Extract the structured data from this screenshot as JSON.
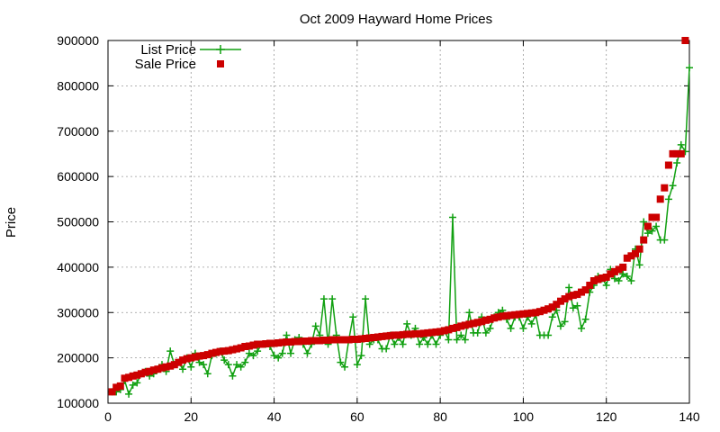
{
  "chart_data": {
    "type": "line",
    "title": "Oct 2009 Hayward Home Prices",
    "xlabel": "",
    "ylabel": "Price",
    "xlim": [
      0,
      140
    ],
    "ylim": [
      100000,
      900000
    ],
    "xticks": [
      "0",
      "20",
      "40",
      "60",
      "80",
      "100",
      "120",
      "140"
    ],
    "yticks": [
      "100000",
      "200000",
      "300000",
      "400000",
      "500000",
      "600000",
      "700000",
      "800000",
      "900000"
    ],
    "grid": true,
    "legend_position": "top-left",
    "series": [
      {
        "name": "List Price",
        "type": "line",
        "marker": "plus",
        "color": "#11a011",
        "x": [
          1,
          2,
          3,
          4,
          5,
          6,
          7,
          8,
          9,
          10,
          11,
          12,
          13,
          14,
          15,
          16,
          17,
          18,
          19,
          20,
          21,
          22,
          23,
          24,
          25,
          26,
          27,
          28,
          29,
          30,
          31,
          32,
          33,
          34,
          35,
          36,
          37,
          38,
          39,
          40,
          41,
          42,
          43,
          44,
          45,
          46,
          47,
          48,
          49,
          50,
          51,
          52,
          53,
          54,
          55,
          56,
          57,
          58,
          59,
          60,
          61,
          62,
          63,
          64,
          65,
          66,
          67,
          68,
          69,
          70,
          71,
          72,
          73,
          74,
          75,
          76,
          77,
          78,
          79,
          80,
          81,
          82,
          83,
          84,
          85,
          86,
          87,
          88,
          89,
          90,
          91,
          92,
          93,
          94,
          95,
          96,
          97,
          98,
          99,
          100,
          101,
          102,
          103,
          104,
          105,
          106,
          107,
          108,
          109,
          110,
          111,
          112,
          113,
          114,
          115,
          116,
          117,
          118,
          119,
          120,
          121,
          122,
          123,
          124,
          125,
          126,
          127,
          128,
          129,
          130,
          131,
          132,
          133,
          134,
          135,
          136,
          137,
          138,
          139,
          140
        ],
        "values": [
          125000,
          125000,
          130000,
          150000,
          120000,
          140000,
          145000,
          165000,
          170000,
          160000,
          165000,
          175000,
          185000,
          170000,
          215000,
          185000,
          190000,
          175000,
          200000,
          180000,
          210000,
          190000,
          185000,
          165000,
          205000,
          210000,
          215000,
          195000,
          185000,
          160000,
          185000,
          180000,
          190000,
          210000,
          205000,
          215000,
          230000,
          230000,
          225000,
          205000,
          200000,
          210000,
          250000,
          210000,
          240000,
          245000,
          230000,
          210000,
          230000,
          270000,
          250000,
          330000,
          230000,
          330000,
          250000,
          190000,
          180000,
          240000,
          290000,
          185000,
          205000,
          330000,
          230000,
          240000,
          240000,
          220000,
          220000,
          250000,
          230000,
          245000,
          230000,
          275000,
          250000,
          265000,
          230000,
          245000,
          230000,
          250000,
          230000,
          250000,
          260000,
          240000,
          510000,
          240000,
          250000,
          240000,
          300000,
          255000,
          255000,
          290000,
          255000,
          265000,
          290000,
          300000,
          305000,
          285000,
          265000,
          290000,
          290000,
          265000,
          290000,
          275000,
          295000,
          250000,
          250000,
          250000,
          290000,
          305000,
          270000,
          280000,
          355000,
          310000,
          315000,
          265000,
          285000,
          345000,
          360000,
          380000,
          375000,
          360000,
          395000,
          375000,
          370000,
          385000,
          380000,
          370000,
          440000,
          405000,
          500000,
          475000,
          480000,
          490000,
          460000,
          460000,
          550000,
          580000,
          630000,
          670000,
          655000,
          840000
        ]
      },
      {
        "name": "Sale Price",
        "type": "scatter",
        "marker": "square",
        "color": "#cc0000",
        "x": [
          1,
          2,
          3,
          4,
          5,
          6,
          7,
          8,
          9,
          10,
          11,
          12,
          13,
          14,
          15,
          16,
          17,
          18,
          19,
          20,
          21,
          22,
          23,
          24,
          25,
          26,
          27,
          28,
          29,
          30,
          31,
          32,
          33,
          34,
          35,
          36,
          37,
          38,
          39,
          40,
          41,
          42,
          43,
          44,
          45,
          46,
          47,
          48,
          49,
          50,
          51,
          52,
          53,
          54,
          55,
          56,
          57,
          58,
          59,
          60,
          61,
          62,
          63,
          64,
          65,
          66,
          67,
          68,
          69,
          70,
          71,
          72,
          73,
          74,
          75,
          76,
          77,
          78,
          79,
          80,
          81,
          82,
          83,
          84,
          85,
          86,
          87,
          88,
          89,
          90,
          91,
          92,
          93,
          94,
          95,
          96,
          97,
          98,
          99,
          100,
          101,
          102,
          103,
          104,
          105,
          106,
          107,
          108,
          109,
          110,
          111,
          112,
          113,
          114,
          115,
          116,
          117,
          118,
          119,
          120,
          121,
          122,
          123,
          124,
          125,
          126,
          127,
          128,
          129,
          130,
          131,
          132,
          133,
          134,
          135,
          136,
          137,
          138,
          139,
          140
        ],
        "values": [
          125000,
          135000,
          138000,
          155000,
          157000,
          160000,
          162000,
          165000,
          168000,
          170000,
          173000,
          175000,
          178000,
          180000,
          182000,
          185000,
          190000,
          195000,
          198000,
          200000,
          202000,
          204000,
          205000,
          207000,
          210000,
          212000,
          214000,
          215000,
          216000,
          218000,
          220000,
          222000,
          225000,
          226000,
          228000,
          230000,
          230000,
          231000,
          232000,
          232000,
          233000,
          234000,
          235000,
          235000,
          236000,
          236000,
          237000,
          237000,
          238000,
          238000,
          238000,
          239000,
          239000,
          240000,
          240000,
          240000,
          240000,
          240000,
          241000,
          241000,
          242000,
          243000,
          244000,
          245000,
          246000,
          247000,
          248000,
          249000,
          250000,
          250000,
          251000,
          252000,
          252000,
          253000,
          253000,
          254000,
          255000,
          256000,
          257000,
          258000,
          260000,
          262000,
          265000,
          267000,
          270000,
          272000,
          274000,
          276000,
          278000,
          280000,
          283000,
          285000,
          288000,
          290000,
          292000,
          293000,
          294000,
          295000,
          296000,
          297000,
          298000,
          299000,
          300000,
          302000,
          305000,
          308000,
          312000,
          318000,
          325000,
          330000,
          335000,
          338000,
          340000,
          345000,
          350000,
          360000,
          370000,
          373000,
          376000,
          378000,
          385000,
          390000,
          395000,
          400000,
          420000,
          425000,
          430000,
          440000,
          460000,
          490000,
          510000,
          510000,
          550000,
          575000,
          625000,
          650000,
          650000,
          650000,
          900000,
          null
        ]
      }
    ]
  }
}
